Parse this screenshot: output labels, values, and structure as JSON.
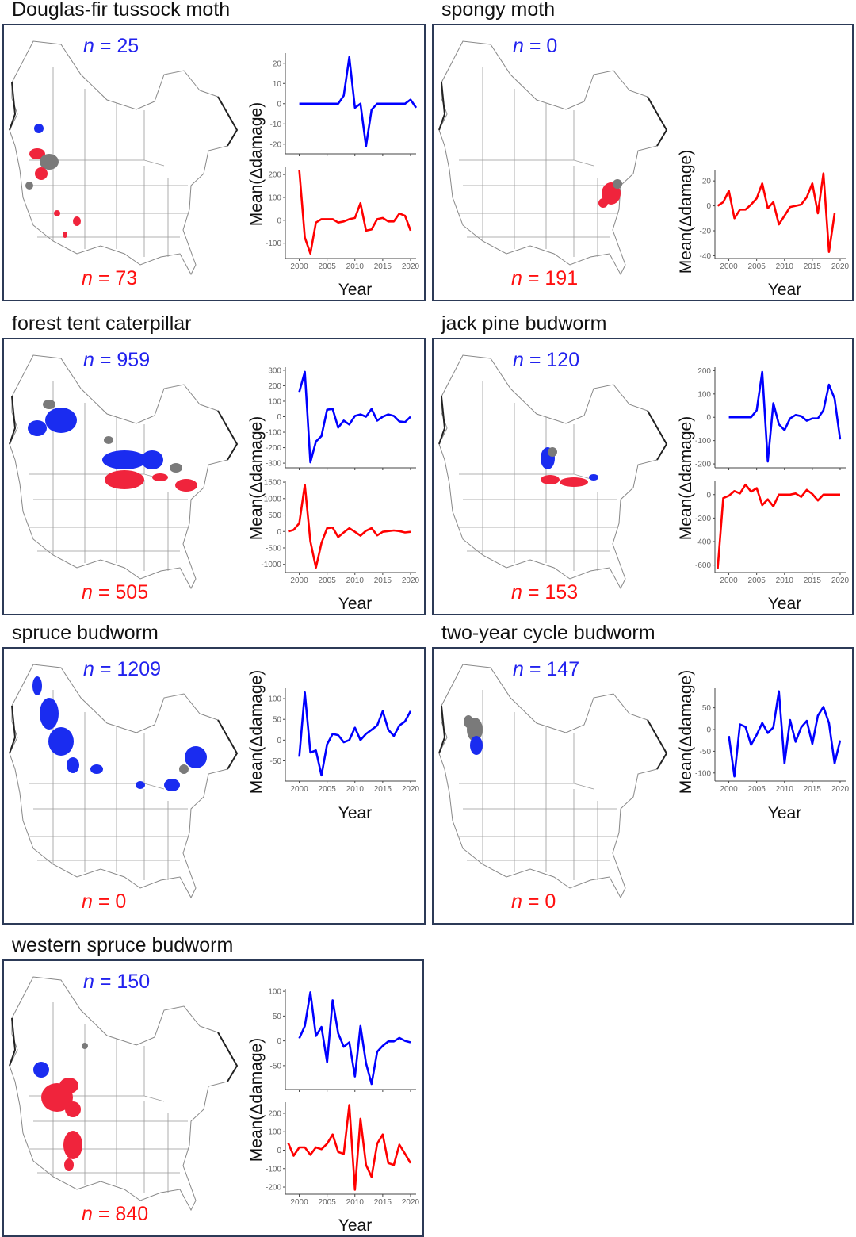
{
  "n_symbol": "n",
  "panels": [
    {
      "title": "Douglas-fir tussock moth",
      "n_top": "= 25",
      "n_bottom": "= 73",
      "ylabel": "Mean(Δdamage)",
      "xlabel": "Year"
    },
    {
      "title": "spongy moth",
      "n_top": "= 0",
      "n_bottom": "= 191",
      "ylabel": "Mean(Δdamage)",
      "xlabel": "Year"
    },
    {
      "title": "forest tent caterpillar",
      "n_top": "= 959",
      "n_bottom": "= 505",
      "ylabel": "Mean(Δdamage)",
      "xlabel": "Year"
    },
    {
      "title": "jack pine budworm",
      "n_top": "= 120",
      "n_bottom": "= 153",
      "ylabel": "Mean(Δdamage)",
      "xlabel": "Year"
    },
    {
      "title": "spruce budworm",
      "n_top": "= 1209",
      "n_bottom": "= 0",
      "ylabel": "Mean(Δdamage)",
      "xlabel": "Year"
    },
    {
      "title": "two-year cycle budworm",
      "n_top": "= 147",
      "n_bottom": "= 0",
      "ylabel": "Mean(Δdamage)",
      "xlabel": "Year"
    },
    {
      "title": "western spruce budworm",
      "n_top": "= 150",
      "n_bottom": "= 840",
      "ylabel": "Mean(Δdamage)",
      "xlabel": "Year"
    }
  ],
  "colors": {
    "increase": "#0000ff",
    "decrease": "#ff0000",
    "map_increase": "#1a2cf0",
    "map_decrease": "#f0243c",
    "map_other": "#7a7a7a",
    "frame": "#2c3a57"
  },
  "chart_data": [
    {
      "type": "line",
      "panel": 0,
      "slot": "top",
      "xlim": [
        1997.5,
        2021
      ],
      "ylim": [
        -24,
        25
      ],
      "yticks": [
        -20,
        -10,
        0,
        10,
        20
      ],
      "xticks": [
        2000,
        2005,
        2010,
        2015,
        2020
      ],
      "series": [
        {
          "name": "n = 25",
          "color": "#0000ff",
          "x_start": 2000,
          "values": [
            0,
            0,
            0,
            0,
            0,
            0,
            0,
            0,
            4,
            23,
            -2,
            0,
            -21,
            -3,
            0,
            0,
            0,
            0,
            0,
            0,
            2,
            -2
          ]
        }
      ]
    },
    {
      "type": "line",
      "panel": 0,
      "slot": "bottom",
      "xlim": [
        1997.5,
        2021
      ],
      "ylim": [
        -160,
        235
      ],
      "yticks": [
        -100,
        0,
        100,
        200
      ],
      "xticks": [
        2000,
        2005,
        2010,
        2015,
        2020
      ],
      "series": [
        {
          "name": "n = 73",
          "color": "#ff0000",
          "x_start": 2000,
          "values": [
            220,
            -75,
            -145,
            -10,
            5,
            5,
            5,
            -10,
            -5,
            5,
            10,
            75,
            -45,
            -40,
            5,
            10,
            -5,
            -5,
            30,
            20,
            -45
          ]
        }
      ]
    },
    {
      "type": "line",
      "panel": 1,
      "slot": "low",
      "xlim": [
        1997.5,
        2021
      ],
      "ylim": [
        -41,
        29
      ],
      "yticks": [
        -40,
        -20,
        0,
        20
      ],
      "xticks": [
        2000,
        2005,
        2010,
        2015,
        2020
      ],
      "series": [
        {
          "name": "n = 191",
          "color": "#ff0000",
          "x_start": 1998,
          "values": [
            0,
            3,
            12,
            -10,
            -3,
            -3,
            1,
            6,
            18,
            -2,
            3,
            -15,
            -8,
            -1,
            0,
            1,
            7,
            18,
            -6,
            26,
            -37,
            -6
          ]
        }
      ]
    },
    {
      "type": "line",
      "panel": 2,
      "slot": "top",
      "xlim": [
        1997.5,
        2021
      ],
      "ylim": [
        -320,
        320
      ],
      "yticks": [
        -300,
        -200,
        -100,
        0,
        100,
        200,
        300
      ],
      "xticks": [
        2000,
        2005,
        2010,
        2015,
        2020
      ],
      "series": [
        {
          "name": "n = 959",
          "color": "#0000ff",
          "x_start": 2000,
          "values": [
            160,
            290,
            -295,
            -160,
            -125,
            45,
            50,
            -70,
            -25,
            -50,
            5,
            15,
            0,
            50,
            -25,
            0,
            15,
            5,
            -30,
            -35,
            0
          ]
        }
      ]
    },
    {
      "type": "line",
      "panel": 2,
      "slot": "bottom",
      "xlim": [
        1997.5,
        2021
      ],
      "ylim": [
        -1200,
        1550
      ],
      "yticks": [
        -1000,
        -500,
        0,
        500,
        1000,
        1500
      ],
      "xticks": [
        2000,
        2005,
        2010,
        2015,
        2020
      ],
      "series": [
        {
          "name": "n = 505",
          "color": "#ff0000",
          "x_start": 1998,
          "values": [
            0,
            50,
            250,
            1420,
            -300,
            -1100,
            -350,
            100,
            120,
            -170,
            -30,
            100,
            -10,
            -130,
            20,
            100,
            -120,
            -10,
            10,
            30,
            10,
            -30,
            -10
          ]
        }
      ]
    },
    {
      "type": "line",
      "panel": 3,
      "slot": "top",
      "xlim": [
        1997.5,
        2021
      ],
      "ylim": [
        -210,
        215
      ],
      "yticks": [
        -200,
        -100,
        0,
        100,
        200
      ],
      "xticks": [
        2000,
        2005,
        2010,
        2015,
        2020
      ],
      "series": [
        {
          "name": "n = 120",
          "color": "#0000ff",
          "x_start": 2000,
          "values": [
            0,
            0,
            0,
            0,
            0,
            30,
            195,
            -190,
            60,
            -30,
            -55,
            -5,
            10,
            5,
            -15,
            -5,
            -5,
            30,
            140,
            80,
            -95
          ]
        }
      ]
    },
    {
      "type": "line",
      "panel": 3,
      "slot": "bottom",
      "xlim": [
        1997.5,
        2021
      ],
      "ylim": [
        -650,
        120
      ],
      "yticks": [
        -600,
        -400,
        -200,
        0
      ],
      "xticks": [
        2000,
        2005,
        2010,
        2015,
        2020
      ],
      "series": [
        {
          "name": "n = 153",
          "color": "#ff0000",
          "x_start": 1998,
          "values": [
            -630,
            -30,
            -10,
            30,
            10,
            85,
            25,
            55,
            -90,
            -40,
            -100,
            0,
            0,
            0,
            10,
            -20,
            40,
            5,
            -50,
            0,
            0,
            0,
            0
          ]
        }
      ]
    },
    {
      "type": "line",
      "panel": 4,
      "slot": "high",
      "xlim": [
        1997.5,
        2021
      ],
      "ylim": [
        -95,
        125
      ],
      "yticks": [
        -50,
        0,
        50,
        100
      ],
      "xticks": [
        2000,
        2005,
        2010,
        2015,
        2020
      ],
      "series": [
        {
          "name": "n = 1209",
          "color": "#0000ff",
          "x_start": 2000,
          "values": [
            -40,
            115,
            -30,
            -25,
            -85,
            -10,
            15,
            12,
            -5,
            0,
            30,
            0,
            15,
            25,
            35,
            70,
            25,
            10,
            35,
            45,
            70
          ]
        }
      ]
    },
    {
      "type": "line",
      "panel": 5,
      "slot": "high",
      "xlim": [
        1997.5,
        2021
      ],
      "ylim": [
        -115,
        95
      ],
      "yticks": [
        -100,
        -50,
        0,
        50
      ],
      "xticks": [
        2000,
        2005,
        2010,
        2015,
        2020
      ],
      "series": [
        {
          "name": "n = 147",
          "color": "#0000ff",
          "x_start": 2000,
          "values": [
            -15,
            -108,
            12,
            6,
            -35,
            -12,
            15,
            -8,
            5,
            88,
            -78,
            22,
            -28,
            5,
            20,
            -33,
            32,
            52,
            15,
            -78,
            -25
          ]
        }
      ]
    },
    {
      "type": "line",
      "panel": 6,
      "slot": "top",
      "xlim": [
        1997.5,
        2021
      ],
      "ylim": [
        -95,
        105
      ],
      "yticks": [
        -50,
        0,
        50,
        100
      ],
      "xticks": [
        2000,
        2005,
        2010,
        2015,
        2020
      ],
      "series": [
        {
          "name": "n = 150",
          "color": "#0000ff",
          "x_start": 2000,
          "values": [
            5,
            30,
            98,
            10,
            28,
            -43,
            82,
            15,
            -12,
            -3,
            -72,
            30,
            -45,
            -87,
            -22,
            -10,
            -1,
            -1,
            6,
            0,
            -3
          ]
        }
      ]
    },
    {
      "type": "line",
      "panel": 6,
      "slot": "bottom",
      "xlim": [
        1997.5,
        2021
      ],
      "ylim": [
        -230,
        260
      ],
      "yticks": [
        -200,
        -100,
        0,
        100,
        200
      ],
      "xticks": [
        2000,
        2005,
        2010,
        2015,
        2020
      ],
      "series": [
        {
          "name": "n = 840",
          "color": "#ff0000",
          "x_start": 1998,
          "values": [
            40,
            -30,
            15,
            15,
            -25,
            15,
            5,
            35,
            85,
            -10,
            -20,
            245,
            -215,
            170,
            -80,
            -145,
            35,
            85,
            -70,
            -80,
            30,
            -20,
            -70
          ]
        }
      ]
    }
  ]
}
